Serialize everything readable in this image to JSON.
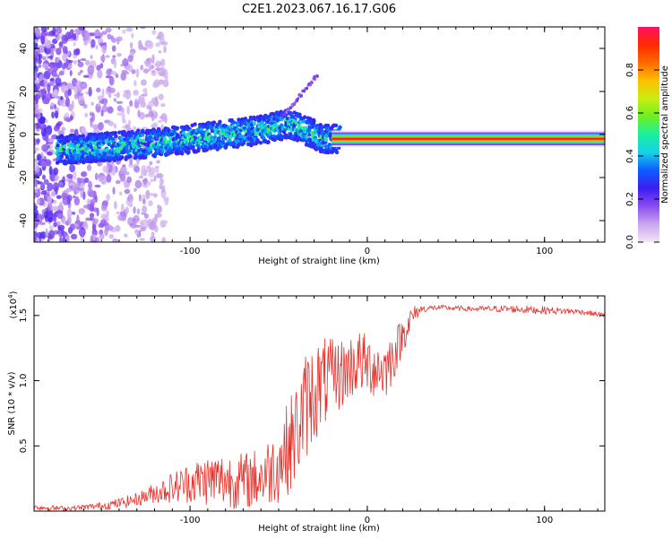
{
  "figure": {
    "title": "C2E1.2023.067.16.17.G06"
  },
  "chart_data": [
    {
      "type": "heatmap",
      "title": "C2E1.2023.067.16.17.G06",
      "xlabel": "Height of straight line (km)",
      "ylabel": "Frequency (Hz)",
      "xlim": [
        -188,
        134
      ],
      "ylim": [
        -50,
        50
      ],
      "xticks": [
        -100,
        0,
        100
      ],
      "xtick_labels": [
        "-100",
        "0",
        "100"
      ],
      "yticks": [
        -40,
        -20,
        0,
        20,
        40
      ],
      "ytick_labels": [
        "-40",
        "-20",
        "0",
        "20",
        "40"
      ],
      "ridge_x": [
        -170,
        -150,
        -120,
        -100,
        -80,
        -60,
        -45,
        -35,
        -25,
        -15,
        0,
        20,
        60,
        100,
        134
      ],
      "ridge_y": [
        -7,
        -6,
        -4,
        -2,
        0,
        2,
        5,
        2,
        -2,
        -2,
        -2,
        -2,
        -2,
        -2,
        -2
      ],
      "colorbar": {
        "label": "Normalized spectral amplitude",
        "range": [
          0,
          1
        ],
        "ticks": [
          0.0,
          0.2,
          0.4,
          0.6,
          0.8
        ],
        "tick_labels": [
          "0.0",
          "0.2",
          "0.4",
          "0.6",
          "0.8"
        ],
        "colors": [
          "#f2e6f7",
          "#c9a6ee",
          "#8a4cf0",
          "#3a1ef2",
          "#0d5cff",
          "#16d2e8",
          "#19f0a0",
          "#6cf020",
          "#c8ee10",
          "#ffc000",
          "#ff6a00",
          "#ff2a00",
          "#ff1060"
        ]
      }
    },
    {
      "type": "line",
      "xlabel": "Height of straight line (km)",
      "ylabel": "SNR (10 * v/v)",
      "multiplier_label": "(x10",
      "multiplier_exp": "4",
      "multiplier_close": ")",
      "xlim": [
        -188,
        134
      ],
      "ylim": [
        0,
        1.65
      ],
      "xticks": [
        -100,
        0,
        100
      ],
      "xtick_labels": [
        "-100",
        "0",
        "100"
      ],
      "yticks": [
        0.5,
        1.0,
        1.5
      ],
      "ytick_labels": [
        "0.5",
        "1.0",
        "1.5"
      ],
      "color": "#e8302a",
      "series": [
        {
          "name": "SNR",
          "x": [
            -188,
            -170,
            -160,
            -150,
            -140,
            -130,
            -120,
            -110,
            -100,
            -90,
            -80,
            -70,
            -60,
            -50,
            -45,
            -40,
            -35,
            -30,
            -25,
            -20,
            -15,
            -10,
            -5,
            0,
            5,
            10,
            15,
            20,
            25,
            30,
            40,
            60,
            80,
            100,
            120,
            134
          ],
          "y": [
            0.03,
            0.02,
            0.03,
            0.04,
            0.06,
            0.09,
            0.14,
            0.18,
            0.22,
            0.24,
            0.24,
            0.23,
            0.26,
            0.36,
            0.48,
            0.6,
            0.8,
            0.92,
            0.98,
            1.02,
            1.05,
            1.1,
            1.15,
            1.12,
            1.1,
            1.08,
            1.2,
            1.35,
            1.48,
            1.55,
            1.56,
            1.55,
            1.55,
            1.54,
            1.53,
            1.5
          ],
          "spread": [
            0.02,
            0.02,
            0.02,
            0.03,
            0.04,
            0.05,
            0.08,
            0.12,
            0.16,
            0.2,
            0.22,
            0.22,
            0.24,
            0.3,
            0.36,
            0.4,
            0.42,
            0.4,
            0.36,
            0.3,
            0.28,
            0.26,
            0.25,
            0.24,
            0.24,
            0.24,
            0.2,
            0.14,
            0.1,
            0.03,
            0.02,
            0.02,
            0.03,
            0.03,
            0.02,
            0.02
          ]
        }
      ]
    }
  ]
}
